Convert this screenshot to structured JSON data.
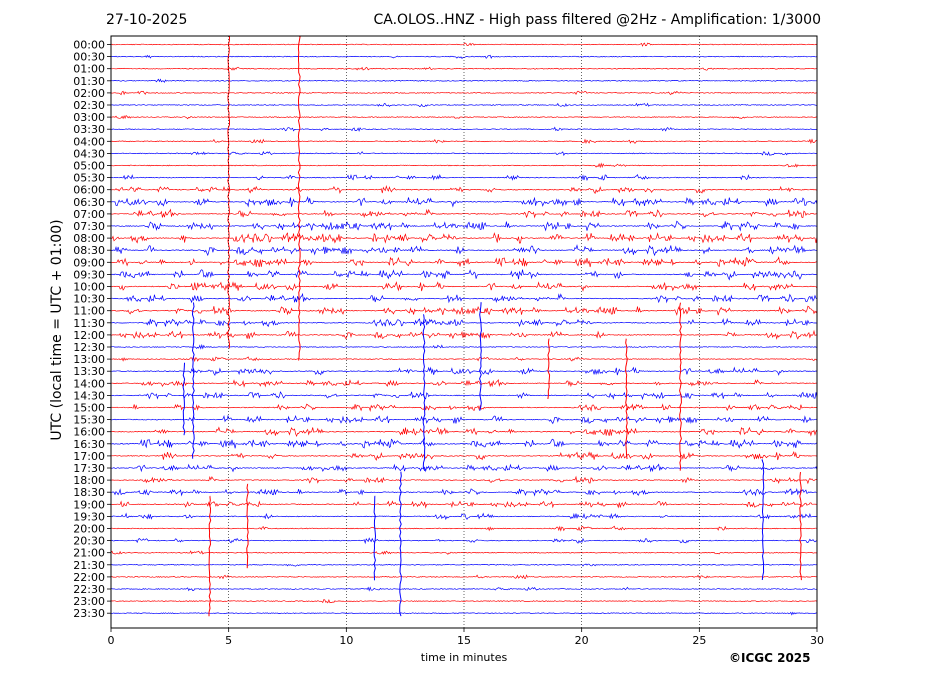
{
  "header": {
    "date": "27-10-2025",
    "title": "CA.OLOS..HNZ - High pass filtered @2Hz - Amplification: 1/3000"
  },
  "footer": {
    "copyright": "©ICGC 2025"
  },
  "chart_data": {
    "type": "line",
    "title": "CA.OLOS..HNZ - High pass filtered @2Hz - Amplification: 1/3000",
    "xlabel": "time in minutes",
    "ylabel": "UTC (local time = UTC + 01:00)",
    "xlim": [
      0,
      30
    ],
    "x_ticks": [
      "0",
      "5",
      "10",
      "15",
      "20",
      "25",
      "30"
    ],
    "grid": "vertical dotted at 5-minute intervals",
    "row_colors": [
      "#ff0000",
      "#0000ff"
    ],
    "rows": [
      "00:00",
      "00:30",
      "01:00",
      "01:30",
      "02:00",
      "02:30",
      "03:00",
      "03:30",
      "04:00",
      "04:30",
      "05:00",
      "05:30",
      "06:00",
      "06:30",
      "07:00",
      "07:30",
      "08:00",
      "08:30",
      "09:00",
      "09:30",
      "10:00",
      "10:30",
      "11:00",
      "11:30",
      "12:00",
      "12:30",
      "13:00",
      "13:30",
      "14:00",
      "14:30",
      "15:00",
      "15:30",
      "16:00",
      "16:30",
      "17:00",
      "17:30",
      "18:00",
      "18:30",
      "19:00",
      "19:30",
      "20:00",
      "20:30",
      "21:00",
      "21:30",
      "22:00",
      "22:30",
      "23:00",
      "23:30"
    ],
    "activity": [
      0.05,
      0.08,
      0.04,
      0.04,
      0.08,
      0.04,
      0.05,
      0.1,
      0.1,
      0.1,
      0.12,
      0.35,
      0.5,
      0.8,
      0.65,
      0.8,
      0.9,
      0.85,
      0.85,
      0.85,
      0.7,
      0.7,
      0.75,
      0.6,
      0.6,
      0.1,
      0.15,
      0.55,
      0.45,
      0.55,
      0.45,
      0.6,
      0.7,
      0.8,
      0.6,
      0.5,
      0.45,
      0.45,
      0.4,
      0.35,
      0.2,
      0.25,
      0.05,
      0.05,
      0.1,
      0.05,
      0.05,
      0.04
    ],
    "spikes": [
      {
        "minute": 5.0,
        "row_from": 0,
        "row_to": 25,
        "color": "#ff0000"
      },
      {
        "minute": 8.0,
        "row_from": 0,
        "row_to": 26,
        "color": "#ff0000"
      },
      {
        "minute": 3.1,
        "row_from": 27,
        "row_to": 32,
        "color": "#0000ff"
      },
      {
        "minute": 3.5,
        "row_from": 22,
        "row_to": 34,
        "color": "#0000ff"
      },
      {
        "minute": 13.3,
        "row_from": 23,
        "row_to": 35,
        "color": "#0000ff"
      },
      {
        "minute": 15.7,
        "row_from": 22,
        "row_to": 30,
        "color": "#0000ff"
      },
      {
        "minute": 18.6,
        "row_from": 25,
        "row_to": 29,
        "color": "#ff0000"
      },
      {
        "minute": 21.9,
        "row_from": 25,
        "row_to": 34,
        "color": "#ff0000"
      },
      {
        "minute": 24.2,
        "row_from": 22,
        "row_to": 35,
        "color": "#ff0000"
      },
      {
        "minute": 4.2,
        "row_from": 38,
        "row_to": 47,
        "color": "#ff0000"
      },
      {
        "minute": 5.8,
        "row_from": 37,
        "row_to": 43,
        "color": "#ff0000"
      },
      {
        "minute": 11.2,
        "row_from": 38,
        "row_to": 44,
        "color": "#0000ff"
      },
      {
        "minute": 12.3,
        "row_from": 36,
        "row_to": 47,
        "color": "#0000ff"
      },
      {
        "minute": 27.7,
        "row_from": 35,
        "row_to": 44,
        "color": "#0000ff"
      },
      {
        "minute": 29.3,
        "row_from": 36,
        "row_to": 44,
        "color": "#ff0000"
      }
    ]
  }
}
